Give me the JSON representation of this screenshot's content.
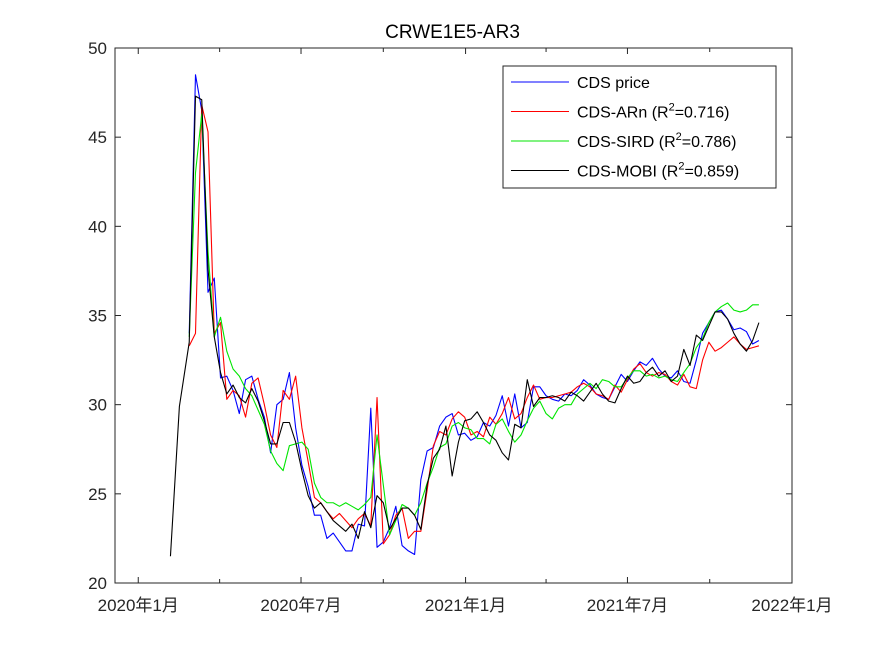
{
  "chart_data": {
    "type": "line",
    "title": "CRWE1E5-AR3",
    "xlabel": "",
    "ylabel": "",
    "ylim": [
      20,
      50
    ],
    "xlim": [
      "2019-12-06",
      "2022-01-01"
    ],
    "yticks": [
      20,
      25,
      30,
      35,
      40,
      45,
      50
    ],
    "xticks": [
      {
        "date": "2020-01-01",
        "label": "2020年1月"
      },
      {
        "date": "2020-07-01",
        "label": "2020年7月"
      },
      {
        "date": "2021-01-01",
        "label": "2021年1月"
      },
      {
        "date": "2021-07-01",
        "label": "2021年7月"
      },
      {
        "date": "2022-01-01",
        "label": "2022年1月"
      }
    ],
    "minor_xticks": [
      "2020-04-01",
      "2020-10-01",
      "2021-04-01",
      "2021-10-01"
    ],
    "grid": false,
    "legend_position": "top-right",
    "series": [
      {
        "name": "CDS price",
        "legend_main": "CDS price",
        "legend_r2": "",
        "color": "#0000ff",
        "x": [
          "2020-02-27",
          "2020-03-05",
          "2020-03-12",
          "2020-03-19",
          "2020-03-26",
          "2020-04-02",
          "2020-04-09",
          "2020-04-16",
          "2020-04-23",
          "2020-04-30",
          "2020-05-07",
          "2020-05-14",
          "2020-05-21",
          "2020-05-28",
          "2020-06-04",
          "2020-06-11",
          "2020-06-18",
          "2020-06-25",
          "2020-07-02",
          "2020-07-09",
          "2020-07-16",
          "2020-07-23",
          "2020-07-30",
          "2020-08-06",
          "2020-08-13",
          "2020-08-20",
          "2020-08-27",
          "2020-09-03",
          "2020-09-10",
          "2020-09-17",
          "2020-09-24",
          "2020-10-01",
          "2020-10-08",
          "2020-10-15",
          "2020-10-22",
          "2020-10-29",
          "2020-11-05",
          "2020-11-12",
          "2020-11-19",
          "2020-11-26",
          "2020-12-03",
          "2020-12-10",
          "2020-12-17",
          "2020-12-24",
          "2020-12-31",
          "2021-01-07",
          "2021-01-14",
          "2021-01-21",
          "2021-01-28",
          "2021-02-04",
          "2021-02-11",
          "2021-02-18",
          "2021-02-25",
          "2021-03-04",
          "2021-03-11",
          "2021-03-18",
          "2021-03-25",
          "2021-04-01",
          "2021-04-08",
          "2021-04-15",
          "2021-04-22",
          "2021-04-29",
          "2021-05-06",
          "2021-05-13",
          "2021-05-20",
          "2021-05-27",
          "2021-06-03",
          "2021-06-10",
          "2021-06-17",
          "2021-06-24",
          "2021-07-01",
          "2021-07-08",
          "2021-07-15",
          "2021-07-22",
          "2021-07-29",
          "2021-08-05",
          "2021-08-12",
          "2021-08-19",
          "2021-08-26",
          "2021-09-02",
          "2021-09-09",
          "2021-09-16",
          "2021-09-23",
          "2021-09-30",
          "2021-10-07",
          "2021-10-14",
          "2021-10-21",
          "2021-10-28",
          "2021-11-04",
          "2021-11-11",
          "2021-11-18",
          "2021-11-25"
        ],
        "y": [
          34.0,
          48.5,
          46.5,
          36.3,
          37.1,
          31.5,
          31.6,
          30.8,
          29.5,
          31.4,
          31.6,
          30.3,
          29.3,
          27.3,
          30.0,
          30.3,
          31.8,
          28.7,
          26.6,
          25.4,
          23.8,
          23.8,
          22.5,
          22.8,
          22.3,
          21.8,
          21.8,
          23.3,
          23.2,
          29.8,
          22.0,
          22.3,
          23.1,
          24.3,
          22.1,
          21.8,
          21.6,
          25.8,
          27.4,
          27.6,
          28.8,
          29.3,
          29.5,
          28.3,
          28.4,
          28.0,
          28.2,
          29.0,
          28.8,
          29.4,
          30.5,
          28.8,
          30.6,
          28.7,
          29.0,
          31.0,
          31.0,
          30.5,
          30.3,
          30.2,
          30.6,
          30.5,
          30.8,
          31.4,
          31.1,
          30.6,
          30.4,
          30.3,
          31.0,
          31.7,
          31.3,
          31.9,
          32.4,
          32.2,
          32.6,
          32.0,
          31.6,
          31.5,
          31.9,
          31.3,
          31.2,
          32.5,
          34.0,
          34.6,
          35.2,
          35.3,
          34.8,
          34.2,
          34.3,
          34.1,
          33.4,
          33.6
        ]
      },
      {
        "name": "CDS-ARn (R2=0.716)",
        "legend_main": "CDS-ARn",
        "legend_r2": "0.716",
        "color": "#ff0000",
        "x": [
          "2020-02-27",
          "2020-03-05",
          "2020-03-12",
          "2020-03-19",
          "2020-03-26",
          "2020-04-02",
          "2020-04-09",
          "2020-04-16",
          "2020-04-23",
          "2020-04-30",
          "2020-05-07",
          "2020-05-14",
          "2020-05-21",
          "2020-05-28",
          "2020-06-04",
          "2020-06-11",
          "2020-06-18",
          "2020-06-25",
          "2020-07-02",
          "2020-07-09",
          "2020-07-16",
          "2020-07-23",
          "2020-07-30",
          "2020-08-06",
          "2020-08-13",
          "2020-08-20",
          "2020-08-27",
          "2020-09-03",
          "2020-09-10",
          "2020-09-17",
          "2020-09-24",
          "2020-10-01",
          "2020-10-08",
          "2020-10-15",
          "2020-10-22",
          "2020-10-29",
          "2020-11-05",
          "2020-11-12",
          "2020-11-19",
          "2020-11-26",
          "2020-12-03",
          "2020-12-10",
          "2020-12-17",
          "2020-12-24",
          "2020-12-31",
          "2021-01-07",
          "2021-01-14",
          "2021-01-21",
          "2021-01-28",
          "2021-02-04",
          "2021-02-11",
          "2021-02-18",
          "2021-02-25",
          "2021-03-04",
          "2021-03-11",
          "2021-03-18",
          "2021-03-25",
          "2021-04-01",
          "2021-04-08",
          "2021-04-15",
          "2021-04-22",
          "2021-04-29",
          "2021-05-06",
          "2021-05-13",
          "2021-05-20",
          "2021-05-27",
          "2021-06-03",
          "2021-06-10",
          "2021-06-17",
          "2021-06-24",
          "2021-07-01",
          "2021-07-08",
          "2021-07-15",
          "2021-07-22",
          "2021-07-29",
          "2021-08-05",
          "2021-08-12",
          "2021-08-19",
          "2021-08-26",
          "2021-09-02",
          "2021-09-09",
          "2021-09-16",
          "2021-09-23",
          "2021-09-30",
          "2021-10-07",
          "2021-10-14",
          "2021-10-21",
          "2021-10-28",
          "2021-11-04",
          "2021-11-11",
          "2021-11-18",
          "2021-11-25"
        ],
        "y": [
          33.3,
          34.0,
          46.8,
          45.3,
          34.0,
          34.6,
          30.3,
          30.8,
          30.5,
          29.3,
          31.2,
          31.5,
          30.0,
          28.3,
          27.6,
          30.8,
          30.3,
          31.6,
          28.7,
          26.8,
          24.8,
          24.5,
          24.0,
          23.6,
          23.9,
          23.5,
          23.1,
          23.6,
          23.9,
          23.2,
          30.4,
          22.2,
          22.7,
          23.8,
          24.2,
          22.5,
          22.9,
          22.9,
          25.2,
          27.7,
          28.5,
          28.3,
          29.2,
          29.6,
          29.3,
          28.3,
          28.5,
          28.2,
          29.3,
          28.9,
          29.5,
          30.4,
          29.2,
          29.5,
          30.4,
          31.1,
          30.3,
          30.4,
          30.4,
          30.5,
          30.6,
          30.7,
          31.0,
          31.2,
          31.0,
          30.6,
          30.5,
          30.3,
          31.1,
          30.7,
          31.4,
          32.0,
          32.3,
          31.8,
          31.6,
          31.8,
          31.7,
          31.3,
          31.1,
          31.7,
          31.0,
          30.9,
          32.5,
          33.5,
          33.0,
          33.2,
          33.5,
          33.8,
          33.4,
          33.1,
          33.2,
          33.3
        ]
      },
      {
        "name": "CDS-SIRD (R2=0.786)",
        "legend_main": "CDS-SIRD",
        "legend_r2": "0.786",
        "color": "#00e600",
        "x": [
          "2020-02-27",
          "2020-03-05",
          "2020-03-12",
          "2020-03-19",
          "2020-03-26",
          "2020-04-02",
          "2020-04-09",
          "2020-04-16",
          "2020-04-23",
          "2020-04-30",
          "2020-05-07",
          "2020-05-14",
          "2020-05-21",
          "2020-05-28",
          "2020-06-04",
          "2020-06-11",
          "2020-06-18",
          "2020-06-25",
          "2020-07-02",
          "2020-07-09",
          "2020-07-16",
          "2020-07-23",
          "2020-07-30",
          "2020-08-06",
          "2020-08-13",
          "2020-08-20",
          "2020-08-27",
          "2020-09-03",
          "2020-09-10",
          "2020-09-17",
          "2020-09-24",
          "2020-10-01",
          "2020-10-08",
          "2020-10-15",
          "2020-10-22",
          "2020-10-29",
          "2020-11-05",
          "2020-11-12",
          "2020-11-19",
          "2020-11-26",
          "2020-12-03",
          "2020-12-10",
          "2020-12-17",
          "2020-12-24",
          "2020-12-31",
          "2021-01-07",
          "2021-01-14",
          "2021-01-21",
          "2021-01-28",
          "2021-02-04",
          "2021-02-11",
          "2021-02-18",
          "2021-02-25",
          "2021-03-04",
          "2021-03-11",
          "2021-03-18",
          "2021-03-25",
          "2021-04-01",
          "2021-04-08",
          "2021-04-15",
          "2021-04-22",
          "2021-04-29",
          "2021-05-06",
          "2021-05-13",
          "2021-05-20",
          "2021-05-27",
          "2021-06-03",
          "2021-06-10",
          "2021-06-17",
          "2021-06-24",
          "2021-07-01",
          "2021-07-08",
          "2021-07-15",
          "2021-07-22",
          "2021-07-29",
          "2021-08-05",
          "2021-08-12",
          "2021-08-19",
          "2021-08-26",
          "2021-09-02",
          "2021-09-09",
          "2021-09-16",
          "2021-09-23",
          "2021-09-30",
          "2021-10-07",
          "2021-10-14",
          "2021-10-21",
          "2021-10-28",
          "2021-11-04",
          "2021-11-11",
          "2021-11-18",
          "2021-11-25"
        ],
        "y": [
          33.8,
          43.0,
          46.3,
          38.6,
          33.8,
          34.9,
          33.0,
          32.0,
          31.6,
          30.9,
          30.5,
          29.7,
          28.9,
          27.4,
          26.7,
          26.3,
          27.7,
          27.8,
          27.9,
          27.5,
          25.6,
          24.8,
          24.5,
          24.5,
          24.3,
          24.5,
          24.3,
          24.1,
          24.4,
          24.8,
          28.3,
          25.5,
          22.7,
          23.5,
          24.4,
          24.2,
          23.8,
          24.5,
          25.6,
          26.5,
          27.6,
          27.8,
          28.8,
          29.0,
          28.7,
          28.6,
          28.1,
          28.1,
          27.8,
          28.9,
          29.2,
          28.5,
          27.9,
          28.3,
          29.1,
          29.8,
          30.2,
          29.5,
          29.2,
          29.8,
          30.0,
          30.0,
          30.6,
          30.9,
          31.2,
          30.9,
          31.4,
          31.3,
          31.0,
          31.0,
          31.5,
          31.9,
          31.9,
          31.6,
          31.7,
          31.5,
          31.6,
          31.4,
          31.3,
          31.8,
          32.3,
          33.2,
          33.7,
          34.6,
          35.2,
          35.5,
          35.7,
          35.3,
          35.2,
          35.3,
          35.6,
          35.6
        ]
      },
      {
        "name": "CDS-MOBI (R2=0.859)",
        "legend_main": "CDS-MOBI",
        "legend_r2": "0.859",
        "color": "#000000",
        "x": [
          "2020-02-06",
          "2020-02-16",
          "2020-02-27",
          "2020-03-05",
          "2020-03-12",
          "2020-03-19",
          "2020-03-26",
          "2020-04-02",
          "2020-04-09",
          "2020-04-16",
          "2020-04-23",
          "2020-04-30",
          "2020-05-07",
          "2020-05-14",
          "2020-05-21",
          "2020-05-28",
          "2020-06-04",
          "2020-06-11",
          "2020-06-18",
          "2020-06-25",
          "2020-07-02",
          "2020-07-09",
          "2020-07-16",
          "2020-07-23",
          "2020-07-30",
          "2020-08-06",
          "2020-08-13",
          "2020-08-20",
          "2020-08-27",
          "2020-09-03",
          "2020-09-10",
          "2020-09-17",
          "2020-09-24",
          "2020-10-01",
          "2020-10-08",
          "2020-10-15",
          "2020-10-22",
          "2020-10-29",
          "2020-11-05",
          "2020-11-12",
          "2020-11-19",
          "2020-11-26",
          "2020-12-03",
          "2020-12-10",
          "2020-12-17",
          "2020-12-24",
          "2020-12-31",
          "2021-01-07",
          "2021-01-14",
          "2021-01-21",
          "2021-01-28",
          "2021-02-04",
          "2021-02-11",
          "2021-02-18",
          "2021-02-25",
          "2021-03-04",
          "2021-03-11",
          "2021-03-18",
          "2021-03-25",
          "2021-04-01",
          "2021-04-08",
          "2021-04-15",
          "2021-04-22",
          "2021-04-29",
          "2021-05-06",
          "2021-05-13",
          "2021-05-20",
          "2021-05-27",
          "2021-06-03",
          "2021-06-10",
          "2021-06-17",
          "2021-06-24",
          "2021-07-01",
          "2021-07-08",
          "2021-07-15",
          "2021-07-22",
          "2021-07-29",
          "2021-08-05",
          "2021-08-12",
          "2021-08-19",
          "2021-08-26",
          "2021-09-02",
          "2021-09-09",
          "2021-09-16",
          "2021-09-23",
          "2021-09-30",
          "2021-10-07",
          "2021-10-14",
          "2021-10-21",
          "2021-10-28",
          "2021-11-04",
          "2021-11-11",
          "2021-11-18",
          "2021-11-25"
        ],
        "y": [
          21.5,
          29.9,
          33.5,
          47.3,
          47.1,
          37.6,
          33.8,
          31.8,
          30.6,
          31.1,
          30.4,
          30.1,
          30.9,
          30.2,
          29.1,
          27.8,
          27.8,
          29.0,
          29.0,
          27.9,
          26.3,
          24.9,
          24.2,
          24.5,
          24.0,
          23.5,
          23.2,
          22.9,
          23.3,
          22.5,
          24.0,
          23.1,
          24.9,
          24.5,
          23.0,
          23.6,
          24.2,
          24.2,
          23.8,
          23.0,
          25.5,
          27.0,
          27.5,
          28.8,
          26.0,
          27.9,
          29.1,
          29.2,
          29.6,
          29.0,
          28.3,
          28.0,
          27.3,
          26.9,
          28.9,
          28.7,
          31.4,
          29.9,
          30.4,
          30.4,
          30.5,
          30.4,
          30.2,
          30.7,
          30.5,
          30.2,
          30.7,
          31.2,
          30.6,
          30.2,
          30.1,
          30.9,
          31.6,
          31.2,
          31.3,
          31.8,
          32.1,
          31.6,
          31.9,
          31.3,
          31.6,
          33.1,
          32.2,
          33.9,
          33.6,
          34.4,
          35.2,
          35.2,
          34.8,
          34.0,
          33.4,
          33.0,
          33.6,
          34.6
        ]
      }
    ]
  }
}
